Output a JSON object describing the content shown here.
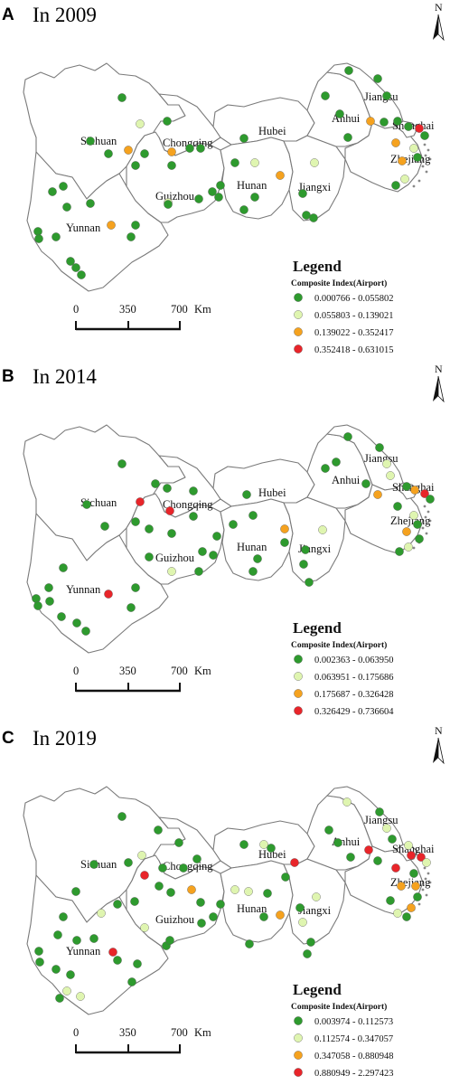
{
  "north_arrow": {
    "label": "N"
  },
  "colors": {
    "class1": "#2e9a2e",
    "class2": "#dff5b0",
    "class3": "#f5a21f",
    "class4": "#e8252a",
    "boundary": "#7a7a7a"
  },
  "provinces": [
    "Sichuan",
    "Chongqing",
    "Yunnan",
    "Guizhou",
    "Hubei",
    "Hunan",
    "Jiangxi",
    "Anhui",
    "Jiangsu",
    "Zhejiang",
    "Shanghai"
  ],
  "legend": {
    "title": "Legend",
    "subtitle": "Composite Index(Airport)"
  },
  "scale": {
    "ticks": [
      "0",
      "350",
      "700"
    ],
    "unit": "Km"
  },
  "panels": [
    {
      "letter": "A",
      "year": "In 2009",
      "classes": [
        "0.000766 - 0.055802",
        "0.055803 - 0.139021",
        "0.139022 - 0.352417",
        "0.352418 - 0.631015"
      ]
    },
    {
      "letter": "B",
      "year": "In 2014",
      "classes": [
        "0.002363 - 0.063950",
        "0.063951 - 0.175686",
        "0.175687 - 0.326428",
        "0.326429 - 0.736604"
      ]
    },
    {
      "letter": "C",
      "year": "In 2019",
      "classes": [
        "0.003974 - 0.112573",
        "0.112574 - 0.347057",
        "0.347058 - 0.880948",
        "0.880949 - 2.297423"
      ]
    }
  ]
}
